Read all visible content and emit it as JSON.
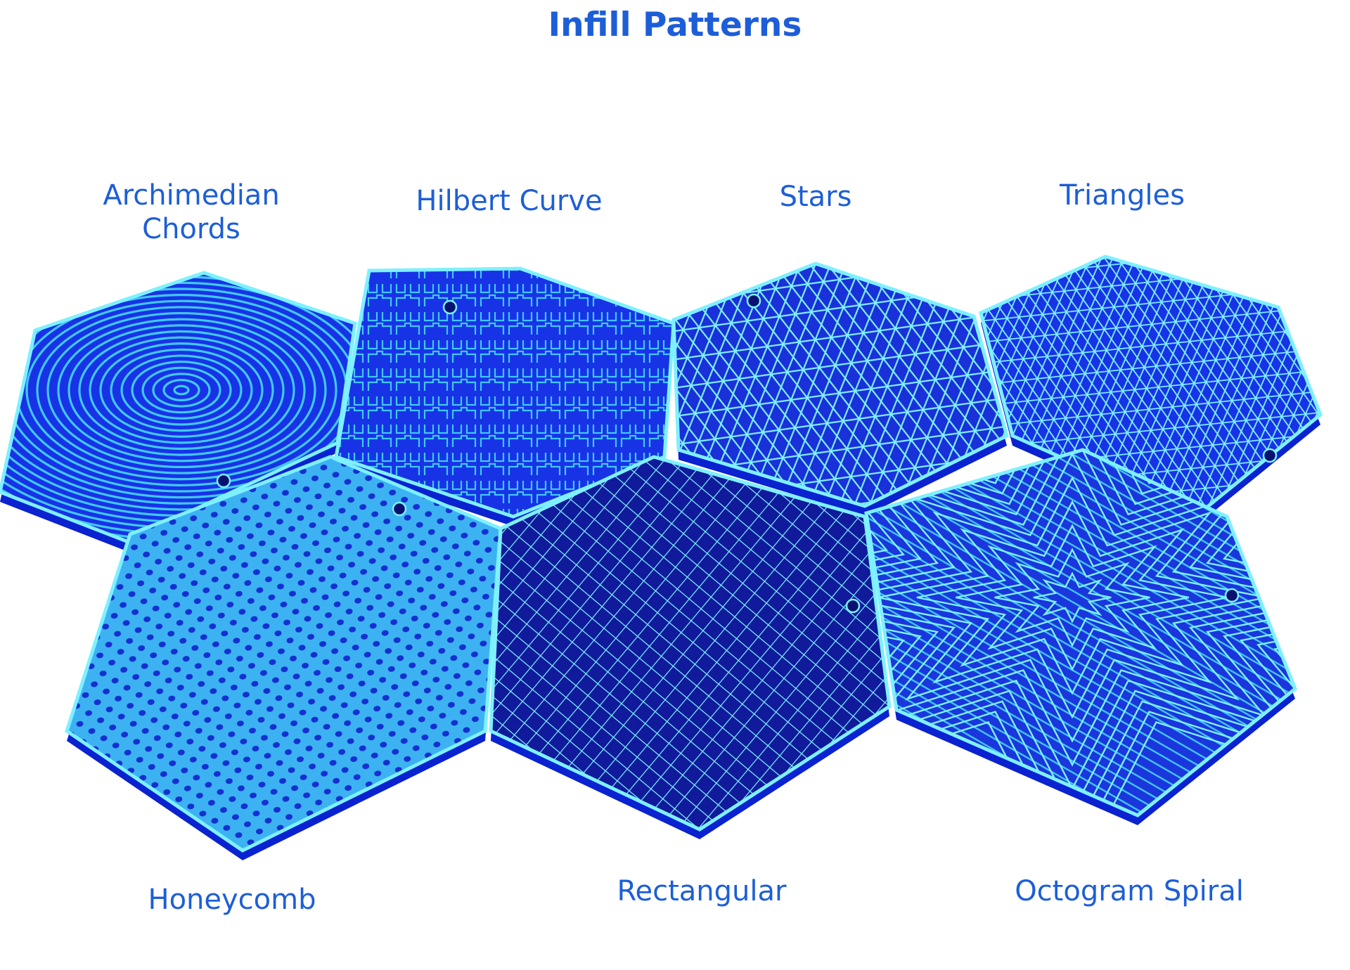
{
  "title": "Infill Patterns",
  "colors": {
    "label": "#1d5ed8",
    "tile_fill": "#1833e6",
    "tile_edge": "#0a22d0",
    "line_light": "#7ef0ff",
    "line_mid": "#40c8f5",
    "hole": "#0a1170"
  },
  "tiles": [
    {
      "name": "Archimedian Chords",
      "label_lines": [
        "Archimedian",
        "Chords"
      ],
      "pattern": "concentric"
    },
    {
      "name": "Hilbert Curve",
      "label_lines": [
        "Hilbert Curve"
      ],
      "pattern": "hilbert"
    },
    {
      "name": "Stars",
      "label_lines": [
        "Stars"
      ],
      "pattern": "stars"
    },
    {
      "name": "Triangles",
      "label_lines": [
        "Triangles"
      ],
      "pattern": "triangles"
    },
    {
      "name": "Honeycomb",
      "label_lines": [
        "Honeycomb"
      ],
      "pattern": "honeycomb"
    },
    {
      "name": "Rectangular",
      "label_lines": [
        "Rectangular"
      ],
      "pattern": "grid"
    },
    {
      "name": "Octogram Spiral",
      "label_lines": [
        "Octogram Spiral"
      ],
      "pattern": "octogram"
    }
  ]
}
